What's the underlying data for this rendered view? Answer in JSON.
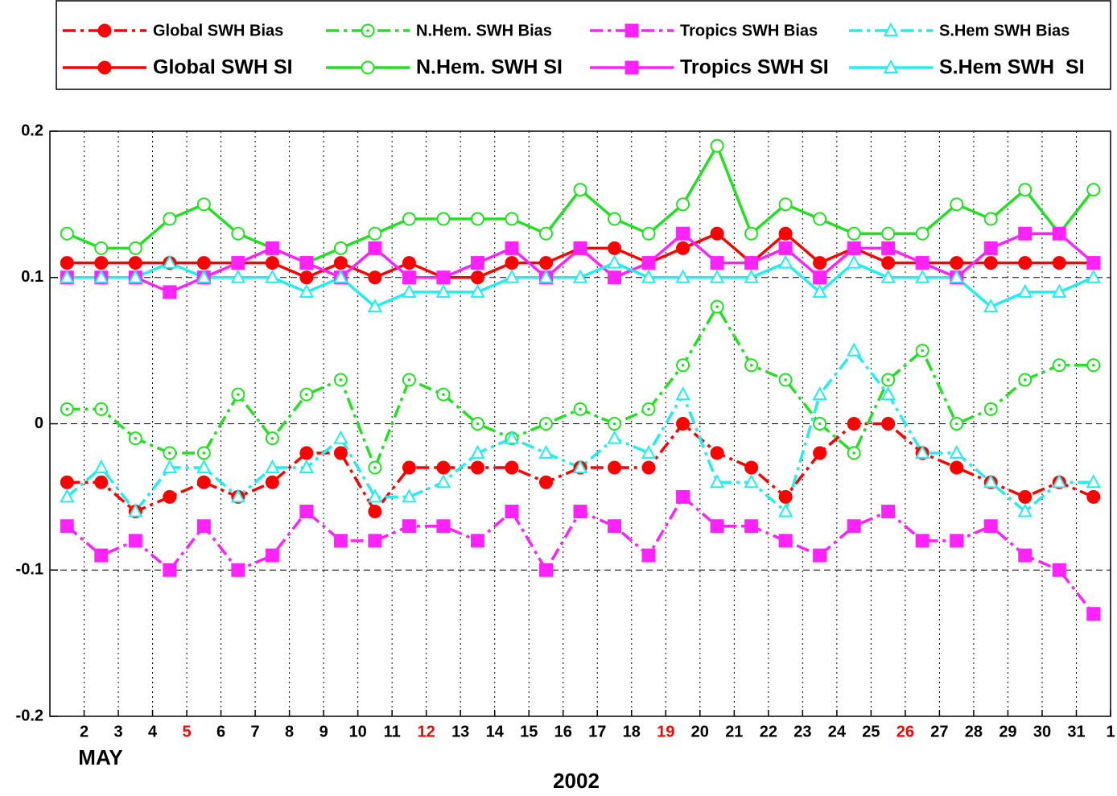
{
  "chart_data": {
    "type": "line",
    "month_label": "MAY",
    "xlabel": "2002",
    "x": [
      1.5,
      2.5,
      3.5,
      4.5,
      5.5,
      6.5,
      7.5,
      8.5,
      9.5,
      10.5,
      11.5,
      12.5,
      13.5,
      14.5,
      15.5,
      16.5,
      17.5,
      18.5,
      19.5,
      20.5,
      21.5,
      22.5,
      23.5,
      24.5,
      25.5,
      26.5,
      27.5,
      28.5,
      29.5,
      30.5,
      31.5
    ],
    "xlim": [
      1,
      32
    ],
    "xticks": [
      2,
      3,
      4,
      5,
      6,
      7,
      8,
      9,
      10,
      11,
      12,
      13,
      14,
      15,
      16,
      17,
      18,
      19,
      20,
      21,
      22,
      23,
      24,
      25,
      26,
      27,
      28,
      29,
      30,
      31,
      {
        "value": 32,
        "label": "1"
      }
    ],
    "highlight_xticks": [
      5,
      12,
      19,
      26
    ],
    "highlight_color": "#ff0000",
    "ylim": [
      -0.2,
      0.2
    ],
    "yticks": [
      0.2,
      0.1,
      0,
      -0.1,
      -0.2
    ],
    "grid": true,
    "legend": "top",
    "series": [
      {
        "name": "Global SWH Bias",
        "color": "#ff0000",
        "style": "dashdot",
        "marker": "circle-filled",
        "values": [
          -0.04,
          -0.04,
          -0.06,
          -0.05,
          -0.04,
          -0.05,
          -0.04,
          -0.02,
          -0.02,
          -0.06,
          -0.03,
          -0.03,
          -0.03,
          -0.03,
          -0.04,
          -0.03,
          -0.03,
          -0.03,
          0.0,
          -0.02,
          -0.03,
          -0.05,
          -0.02,
          0.0,
          0.0,
          -0.02,
          -0.03,
          -0.04,
          -0.05,
          -0.04,
          -0.05
        ]
      },
      {
        "name": "N.Hem. SWH Bias",
        "color": "#22e022",
        "style": "dashdot",
        "marker": "circle-dot",
        "values": [
          0.01,
          0.01,
          -0.01,
          -0.02,
          -0.02,
          0.02,
          -0.01,
          0.02,
          0.03,
          -0.03,
          0.03,
          0.02,
          0.0,
          -0.01,
          0.0,
          0.01,
          0.0,
          0.01,
          0.04,
          0.08,
          0.04,
          0.03,
          0.0,
          -0.02,
          0.03,
          0.05,
          0.0,
          0.01,
          0.03,
          0.04,
          0.04
        ]
      },
      {
        "name": "Tropics SWH Bias",
        "color": "#ff22ff",
        "style": "dashdot",
        "marker": "square-filled",
        "values": [
          -0.07,
          -0.09,
          -0.08,
          -0.1,
          -0.07,
          -0.1,
          -0.09,
          -0.06,
          -0.08,
          -0.08,
          -0.07,
          -0.07,
          -0.08,
          -0.06,
          -0.1,
          -0.06,
          -0.07,
          -0.09,
          -0.05,
          -0.07,
          -0.07,
          -0.08,
          -0.09,
          -0.07,
          -0.06,
          -0.08,
          -0.08,
          -0.07,
          -0.09,
          -0.1,
          -0.13
        ]
      },
      {
        "name": "S.Hem SWH Bias",
        "color": "#22eeee",
        "style": "dashdot",
        "marker": "triangle-open",
        "values": [
          -0.05,
          -0.03,
          -0.06,
          -0.03,
          -0.03,
          -0.05,
          -0.03,
          -0.03,
          -0.01,
          -0.05,
          -0.05,
          -0.04,
          -0.02,
          -0.01,
          -0.02,
          -0.03,
          -0.01,
          -0.02,
          0.02,
          -0.04,
          -0.04,
          -0.06,
          0.02,
          0.05,
          0.02,
          -0.02,
          -0.02,
          -0.04,
          -0.06,
          -0.04,
          -0.04
        ]
      },
      {
        "name": "Global SWH SI",
        "color": "#ff0000",
        "style": "solid",
        "marker": "circle-filled",
        "values": [
          0.11,
          0.11,
          0.11,
          0.11,
          0.11,
          0.11,
          0.11,
          0.1,
          0.11,
          0.1,
          0.11,
          0.1,
          0.1,
          0.11,
          0.11,
          0.12,
          0.12,
          0.11,
          0.12,
          0.13,
          0.11,
          0.13,
          0.11,
          0.12,
          0.11,
          0.11,
          0.11,
          0.11,
          0.11,
          0.11,
          0.11
        ]
      },
      {
        "name": "N.Hem. SWH SI",
        "color": "#22e022",
        "style": "solid",
        "marker": "circle-open",
        "values": [
          0.13,
          0.12,
          0.12,
          0.14,
          0.15,
          0.13,
          0.12,
          0.11,
          0.12,
          0.13,
          0.14,
          0.14,
          0.14,
          0.14,
          0.13,
          0.16,
          0.14,
          0.13,
          0.15,
          0.19,
          0.13,
          0.15,
          0.14,
          0.13,
          0.13,
          0.13,
          0.15,
          0.14,
          0.16,
          0.13,
          0.16
        ]
      },
      {
        "name": "Tropics SWH SI",
        "color": "#ff22ff",
        "style": "solid",
        "marker": "square-filled",
        "values": [
          0.1,
          0.1,
          0.1,
          0.09,
          0.1,
          0.11,
          0.12,
          0.11,
          0.1,
          0.12,
          0.1,
          0.1,
          0.11,
          0.12,
          0.1,
          0.12,
          0.1,
          0.11,
          0.13,
          0.11,
          0.11,
          0.12,
          0.1,
          0.12,
          0.12,
          0.11,
          0.1,
          0.12,
          0.13,
          0.13,
          0.11
        ]
      },
      {
        "name": "S.Hem SWH  SI",
        "color": "#22eeee",
        "style": "solid",
        "marker": "triangle-open",
        "values": [
          0.1,
          0.1,
          0.1,
          0.11,
          0.1,
          0.1,
          0.1,
          0.09,
          0.1,
          0.08,
          0.09,
          0.09,
          0.09,
          0.1,
          0.1,
          0.1,
          0.11,
          0.1,
          0.1,
          0.1,
          0.1,
          0.11,
          0.09,
          0.11,
          0.1,
          0.1,
          0.1,
          0.08,
          0.09,
          0.09,
          0.1
        ]
      }
    ]
  }
}
